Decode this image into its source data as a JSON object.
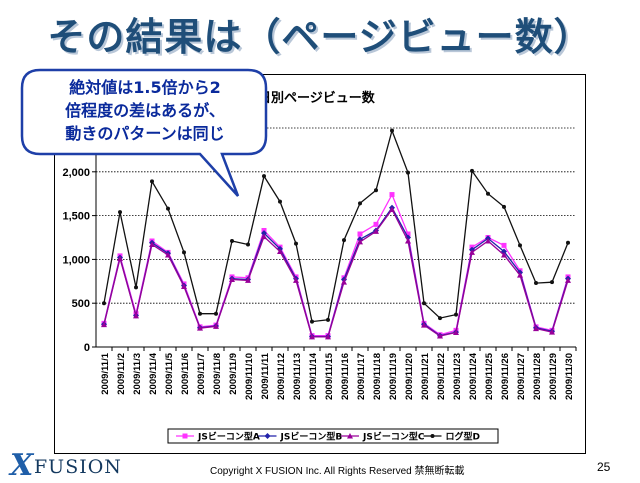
{
  "slide": {
    "title": "その結果は（ページビュー数）",
    "callout_lines": [
      "絶対値は1.5倍から2",
      "倍程度の差はあるが、",
      "動きのパターンは同じ"
    ],
    "copyright": "Copyright X FUSION Inc. All Rights Reserved  禁無断転載",
    "page_number": "25",
    "logo_text": "FUSION",
    "logo_mark": "X"
  },
  "chart_data": {
    "type": "line",
    "title": "日別ページビュー数",
    "ylim": [
      0,
      2500
    ],
    "yticks": [
      "0",
      "500",
      "1,000",
      "1,500",
      "2,000"
    ],
    "ytick_values": [
      0,
      500,
      1000,
      1500,
      2000
    ],
    "grid": true,
    "legend_position": "bottom",
    "categories": [
      "2009/11/1",
      "2009/11/2",
      "2009/11/3",
      "2009/11/4",
      "2009/11/5",
      "2009/11/6",
      "2009/11/7",
      "2009/11/8",
      "2009/11/9",
      "2009/11/10",
      "2009/11/11",
      "2009/11/12",
      "2009/11/13",
      "2009/11/14",
      "2009/11/15",
      "2009/11/16",
      "2009/11/17",
      "2009/11/18",
      "2009/11/19",
      "2009/11/20",
      "2009/11/21",
      "2009/11/22",
      "2009/11/23",
      "2009/11/24",
      "2009/11/25",
      "2009/11/26",
      "2009/11/27",
      "2009/11/28",
      "2009/11/29",
      "2009/11/30"
    ],
    "series": [
      {
        "name": "JSビーコン型A",
        "color": "#ff33ff",
        "marker": "square",
        "values": [
          270,
          1040,
          380,
          1210,
          1080,
          720,
          230,
          250,
          800,
          790,
          1330,
          1140,
          800,
          130,
          130,
          790,
          1290,
          1400,
          1740,
          1290,
          270,
          140,
          190,
          1140,
          1250,
          1160,
          870,
          230,
          190,
          800
        ]
      },
      {
        "name": "JSビーコン型B",
        "color": "#2222aa",
        "marker": "diamond",
        "values": [
          260,
          1020,
          360,
          1190,
          1070,
          700,
          220,
          240,
          780,
          770,
          1300,
          1120,
          780,
          120,
          120,
          770,
          1230,
          1330,
          1590,
          1250,
          260,
          130,
          170,
          1110,
          1240,
          1090,
          850,
          220,
          180,
          780
        ]
      },
      {
        "name": "JSビーコン型C",
        "color": "#990099",
        "marker": "triangle",
        "values": [
          255,
          1010,
          355,
          1170,
          1050,
          690,
          215,
          235,
          770,
          760,
          1260,
          1090,
          760,
          115,
          115,
          740,
          1200,
          1320,
          1570,
          1210,
          250,
          125,
          165,
          1080,
          1210,
          1050,
          820,
          210,
          170,
          760
        ]
      },
      {
        "name": "ログ型D",
        "color": "#111111",
        "marker": "circle",
        "values": [
          500,
          1540,
          680,
          1890,
          1580,
          1080,
          380,
          380,
          1210,
          1170,
          1950,
          1660,
          1180,
          290,
          310,
          1220,
          1640,
          1790,
          2470,
          1990,
          500,
          330,
          370,
          2010,
          1750,
          1600,
          1160,
          730,
          740,
          1190
        ]
      }
    ]
  }
}
